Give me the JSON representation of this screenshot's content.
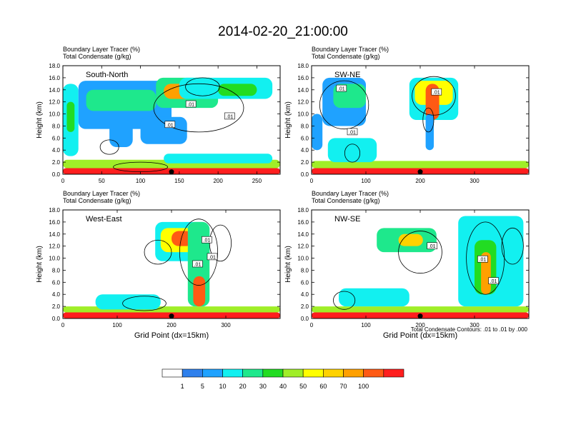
{
  "figure": {
    "title": "2014-02-20_21:00:00",
    "contour_note": "Total Condensate Contours: .01 to .01 by .000",
    "xlabel": "Grid Point (dx=15km)"
  },
  "colors": {
    "palette": [
      "#ffffff",
      "#2f80ec",
      "#1fa2ff",
      "#12f0f0",
      "#1ee88c",
      "#22dc22",
      "#a0ee28",
      "#ffff00",
      "#ffd200",
      "#ffa000",
      "#ff5a14",
      "#ff1e1e"
    ]
  },
  "chart_data": [
    {
      "type": "heatmap",
      "panel": "South-North",
      "subtitle_1": "Boundary Layer Tracer   (%)",
      "subtitle_2": "Total Condensate   (g/kg)",
      "ylabel": "Height (km)",
      "xlabel": "",
      "xlim": [
        0,
        280
      ],
      "ylim": [
        0,
        18
      ],
      "x_ticks": [
        0,
        50,
        100,
        150,
        200,
        250
      ],
      "y_ticks": [
        "0.0",
        "2.0",
        "4.0",
        "6.0",
        "8.0",
        "10.0",
        "12.0",
        "14.0",
        "16.0",
        "18.0"
      ],
      "marker_x": 140,
      "contour_label_text": ".01",
      "contour_labels": [
        {
          "x": 165,
          "y": 11.6
        },
        {
          "x": 215,
          "y": 9.6
        },
        {
          "x": 138,
          "y": 8.2
        }
      ],
      "blobs": [
        {
          "x0": 0,
          "x1": 280,
          "y0": 0,
          "y1": 1.0,
          "level": 11
        },
        {
          "x0": 0,
          "x1": 280,
          "y0": 1.0,
          "y1": 2.4,
          "level": 6
        },
        {
          "x0": 130,
          "x1": 270,
          "y0": 1.8,
          "y1": 3.4,
          "level": 3
        },
        {
          "x0": 0,
          "x1": 20,
          "y0": 3,
          "y1": 15,
          "level": 3
        },
        {
          "x0": 5,
          "x1": 15,
          "y0": 7,
          "y1": 12,
          "level": 5
        },
        {
          "x0": 20,
          "x1": 140,
          "y0": 7.5,
          "y1": 15.5,
          "level": 2
        },
        {
          "x0": 30,
          "x1": 120,
          "y0": 10.5,
          "y1": 14,
          "level": 4
        },
        {
          "x0": 120,
          "x1": 200,
          "y0": 11,
          "y1": 16,
          "level": 4
        },
        {
          "x0": 130,
          "x1": 200,
          "y0": 12.5,
          "y1": 15,
          "level": 9
        },
        {
          "x0": 150,
          "x1": 270,
          "y0": 12.5,
          "y1": 16,
          "level": 3
        },
        {
          "x0": 200,
          "x1": 250,
          "y0": 13,
          "y1": 15,
          "level": 5
        },
        {
          "x0": 60,
          "x1": 90,
          "y0": 4.5,
          "y1": 9,
          "level": 2
        },
        {
          "x0": 100,
          "x1": 160,
          "y0": 5,
          "y1": 9.5,
          "level": 2
        }
      ],
      "contours": [
        {
          "cx": 175,
          "cy": 11.0,
          "rx": 58,
          "ry": 4.0
        },
        {
          "cx": 180,
          "cy": 14.5,
          "rx": 22,
          "ry": 1.5
        },
        {
          "cx": 60,
          "cy": 4.5,
          "rx": 12,
          "ry": 1.2
        },
        {
          "cx": 100,
          "cy": 1.2,
          "rx": 35,
          "ry": 0.8
        }
      ]
    },
    {
      "type": "heatmap",
      "panel": "SW-NE",
      "subtitle_1": "Boundary Layer Tracer   (%)",
      "subtitle_2": "Total Condensate   (g/kg)",
      "ylabel": "Height (km)",
      "xlabel": "",
      "xlim": [
        0,
        400
      ],
      "ylim": [
        0,
        18
      ],
      "x_ticks": [
        0,
        100,
        200,
        300
      ],
      "y_ticks": [
        "0.0",
        "2.0",
        "4.0",
        "6.0",
        "8.0",
        "10.0",
        "12.0",
        "14.0",
        "16.0",
        "18.0"
      ],
      "marker_x": 200,
      "contour_label_text": ".01",
      "contour_labels": [
        {
          "x": 55,
          "y": 14.2
        },
        {
          "x": 230,
          "y": 13.6
        },
        {
          "x": 75,
          "y": 7.0
        }
      ],
      "blobs": [
        {
          "x0": 0,
          "x1": 400,
          "y0": 0,
          "y1": 1.0,
          "level": 11
        },
        {
          "x0": 0,
          "x1": 400,
          "y0": 1.0,
          "y1": 2.2,
          "level": 6
        },
        {
          "x0": 30,
          "x1": 120,
          "y0": 2,
          "y1": 6,
          "level": 3
        },
        {
          "x0": 20,
          "x1": 100,
          "y0": 8,
          "y1": 16,
          "level": 2
        },
        {
          "x0": 40,
          "x1": 100,
          "y0": 11,
          "y1": 15,
          "level": 4
        },
        {
          "x0": 180,
          "x1": 270,
          "y0": 9,
          "y1": 16,
          "level": 3
        },
        {
          "x0": 190,
          "x1": 260,
          "y0": 11.5,
          "y1": 15.5,
          "level": 7
        },
        {
          "x0": 210,
          "x1": 235,
          "y0": 9,
          "y1": 15,
          "level": 10
        },
        {
          "x0": 210,
          "x1": 225,
          "y0": 4,
          "y1": 10,
          "level": 2
        },
        {
          "x0": 0,
          "x1": 20,
          "y0": 4,
          "y1": 10,
          "level": 2
        }
      ],
      "contours": [
        {
          "cx": 60,
          "cy": 11.5,
          "rx": 45,
          "ry": 4.0
        },
        {
          "cx": 225,
          "cy": 13.0,
          "rx": 40,
          "ry": 3.2
        },
        {
          "cx": 215,
          "cy": 9.0,
          "rx": 10,
          "ry": 2.0
        },
        {
          "cx": 75,
          "cy": 3.5,
          "rx": 14,
          "ry": 1.5
        }
      ]
    },
    {
      "type": "heatmap",
      "panel": "West-East",
      "subtitle_1": "Boundary Layer Tracer   (%)",
      "subtitle_2": "Total Condensate   (g/kg)",
      "ylabel": "Height (km)",
      "xlabel": "Grid Point (dx=15km)",
      "xlim": [
        0,
        400
      ],
      "ylim": [
        0,
        18
      ],
      "x_ticks": [
        0,
        100,
        200,
        300
      ],
      "y_ticks": [
        "0.0",
        "2.0",
        "4.0",
        "6.0",
        "8.0",
        "10.0",
        "12.0",
        "14.0",
        "16.0",
        "18.0"
      ],
      "marker_x": 200,
      "contour_label_text": ".01",
      "contour_labels": [
        {
          "x": 265,
          "y": 13.0
        },
        {
          "x": 275,
          "y": 10.2
        },
        {
          "x": 248,
          "y": 9.0
        }
      ],
      "blobs": [
        {
          "x0": 0,
          "x1": 400,
          "y0": 0,
          "y1": 1.0,
          "level": 11
        },
        {
          "x0": 0,
          "x1": 400,
          "y0": 1.0,
          "y1": 2.0,
          "level": 6
        },
        {
          "x0": 60,
          "x1": 180,
          "y0": 1.5,
          "y1": 4.0,
          "level": 3
        },
        {
          "x0": 170,
          "x1": 270,
          "y0": 9.5,
          "y1": 16,
          "level": 3
        },
        {
          "x0": 180,
          "x1": 260,
          "y0": 11,
          "y1": 15,
          "level": 7
        },
        {
          "x0": 200,
          "x1": 240,
          "y0": 12,
          "y1": 14.5,
          "level": 10
        },
        {
          "x0": 230,
          "x1": 270,
          "y0": 2,
          "y1": 16,
          "level": 4
        },
        {
          "x0": 240,
          "x1": 262,
          "y0": 2,
          "y1": 7,
          "level": 10
        }
      ],
      "contours": [
        {
          "cx": 250,
          "cy": 11.0,
          "rx": 35,
          "ry": 5.5
        },
        {
          "cx": 175,
          "cy": 11.0,
          "rx": 25,
          "ry": 2.0
        },
        {
          "cx": 290,
          "cy": 12.5,
          "rx": 20,
          "ry": 3.0
        },
        {
          "cx": 150,
          "cy": 2.5,
          "rx": 40,
          "ry": 1.2
        }
      ]
    },
    {
      "type": "heatmap",
      "panel": "NW-SE",
      "subtitle_1": "Boundary Layer Tracer   (%)",
      "subtitle_2": "Total Condensate   (g/kg)",
      "ylabel": "Height (km)",
      "xlabel": "Grid Point (dx=15km)",
      "xlim": [
        0,
        400
      ],
      "ylim": [
        0,
        18
      ],
      "x_ticks": [
        0,
        100,
        200,
        300
      ],
      "y_ticks": [
        "0.0",
        "2.0",
        "4.0",
        "6.0",
        "8.0",
        "10.0",
        "12.0",
        "14.0",
        "16.0",
        "18.0"
      ],
      "marker_x": 200,
      "contour_label_text": ".01",
      "contour_labels": [
        {
          "x": 222,
          "y": 12.0
        },
        {
          "x": 315,
          "y": 9.8
        },
        {
          "x": 335,
          "y": 6.2
        }
      ],
      "blobs": [
        {
          "x0": 0,
          "x1": 400,
          "y0": 0,
          "y1": 1.0,
          "level": 11
        },
        {
          "x0": 0,
          "x1": 400,
          "y0": 1.0,
          "y1": 2.0,
          "level": 6
        },
        {
          "x0": 50,
          "x1": 180,
          "y0": 2,
          "y1": 5,
          "level": 3
        },
        {
          "x0": 120,
          "x1": 230,
          "y0": 11,
          "y1": 15,
          "level": 4
        },
        {
          "x0": 160,
          "x1": 205,
          "y0": 12,
          "y1": 14,
          "level": 8
        },
        {
          "x0": 270,
          "x1": 390,
          "y0": 2,
          "y1": 17,
          "level": 3
        },
        {
          "x0": 300,
          "x1": 340,
          "y0": 4,
          "y1": 13,
          "level": 5
        },
        {
          "x0": 312,
          "x1": 330,
          "y0": 4,
          "y1": 11,
          "level": 9
        }
      ],
      "contours": [
        {
          "cx": 200,
          "cy": 11.0,
          "rx": 40,
          "ry": 3.5
        },
        {
          "cx": 320,
          "cy": 10.0,
          "rx": 35,
          "ry": 6.0
        },
        {
          "cx": 370,
          "cy": 12.0,
          "rx": 20,
          "ry": 3.0
        },
        {
          "cx": 60,
          "cy": 3.0,
          "rx": 20,
          "ry": 1.5
        }
      ]
    }
  ],
  "legend": {
    "labels": [
      "1",
      "5",
      "10",
      "20",
      "30",
      "40",
      "50",
      "60",
      "70",
      "100"
    ]
  }
}
